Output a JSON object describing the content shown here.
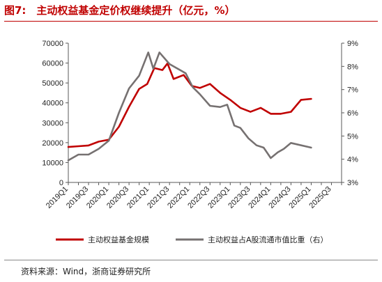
{
  "figure": {
    "title": "图7:　主动权益基金定价权继续提升（亿元，%）",
    "source": "资料来源：Wind，浙商证券研究所"
  },
  "colors": {
    "fund_scale": "#c00000",
    "share": "#767171",
    "axis": "#595959"
  },
  "chart_data": {
    "type": "line",
    "x_tick_labels": [
      "2019Q1",
      "2019Q3",
      "2020Q1",
      "2020Q3",
      "2021Q1",
      "2021Q3",
      "2022Q1",
      "2022Q3",
      "2023Q1",
      "2023Q3",
      "2024Q1",
      "2024Q3",
      "2025Q1",
      "2025Q3"
    ],
    "x_range": [
      0,
      27
    ],
    "y_left": {
      "range": [
        0,
        70000
      ],
      "ticks": [
        0,
        10000,
        20000,
        30000,
        40000,
        50000,
        60000,
        70000
      ]
    },
    "y_right": {
      "range": [
        3,
        9
      ],
      "ticks": [
        "3%",
        "4%",
        "5%",
        "6%",
        "7%",
        "8%",
        "9%"
      ]
    },
    "series": [
      {
        "name": "主动权益基金规模",
        "axis": "left",
        "points": [
          [
            0,
            17800
          ],
          [
            1,
            18200
          ],
          [
            2,
            18600
          ],
          [
            3,
            20500
          ],
          [
            4,
            21500
          ],
          [
            5,
            28000
          ],
          [
            6,
            38000
          ],
          [
            7,
            47000
          ],
          [
            7.8,
            49500
          ],
          [
            8.5,
            57500
          ],
          [
            9.3,
            56500
          ],
          [
            9.8,
            59800
          ],
          [
            10.4,
            52000
          ],
          [
            11.4,
            54000
          ],
          [
            12.2,
            48500
          ],
          [
            13,
            47500
          ],
          [
            14,
            49500
          ],
          [
            15,
            45000
          ],
          [
            16,
            41500
          ],
          [
            17,
            37500
          ],
          [
            18,
            35500
          ],
          [
            19,
            37500
          ],
          [
            20,
            34500
          ],
          [
            21,
            34500
          ],
          [
            22,
            35500
          ],
          [
            23,
            41500
          ],
          [
            24,
            42000
          ]
        ]
      },
      {
        "name": "主动权益占A股流通市值比重（右）",
        "axis": "right",
        "points": [
          [
            0,
            3.95
          ],
          [
            1,
            4.2
          ],
          [
            2,
            4.2
          ],
          [
            3,
            4.45
          ],
          [
            4,
            4.8
          ],
          [
            5,
            6.0
          ],
          [
            6,
            7.05
          ],
          [
            7,
            7.6
          ],
          [
            7.9,
            8.6
          ],
          [
            8.4,
            7.9
          ],
          [
            9,
            8.6
          ],
          [
            10,
            8.1
          ],
          [
            11,
            7.85
          ],
          [
            11.6,
            7.7
          ],
          [
            12.3,
            7.1
          ],
          [
            13,
            6.8
          ],
          [
            14,
            6.3
          ],
          [
            15,
            6.25
          ],
          [
            15.7,
            6.35
          ],
          [
            16.4,
            5.45
          ],
          [
            17,
            5.35
          ],
          [
            17.8,
            4.9
          ],
          [
            18.6,
            4.6
          ],
          [
            19.3,
            4.5
          ],
          [
            20,
            4.05
          ],
          [
            20.7,
            4.3
          ],
          [
            21.3,
            4.45
          ],
          [
            22,
            4.7
          ],
          [
            24,
            4.5
          ]
        ]
      }
    ],
    "legend": {
      "position": "bottom"
    },
    "grid": false
  }
}
